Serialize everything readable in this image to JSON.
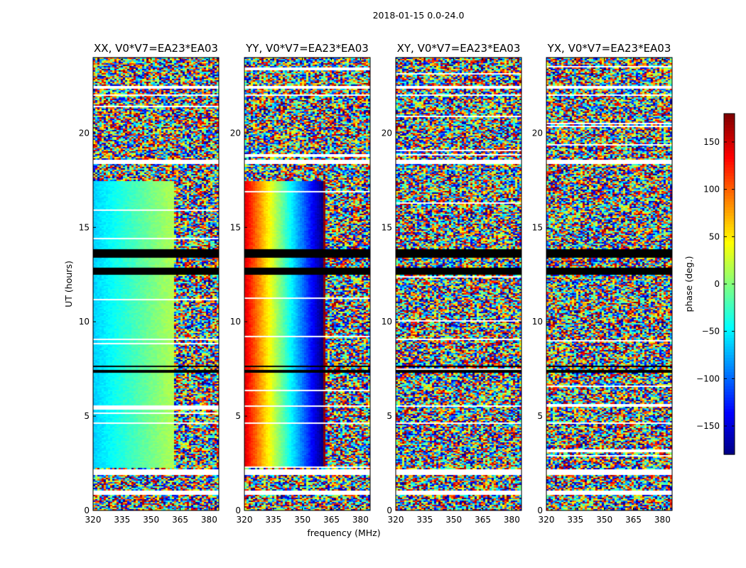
{
  "figure": {
    "suptitle": "2018-01-15 0.0-24.0",
    "xlabel": "frequency (MHz)",
    "ylabel": "UT (hours)",
    "colorbar_label": "phase (deg.)"
  },
  "chart_data": {
    "type": "heatmap",
    "xlim": [
      320,
      385
    ],
    "ylim": [
      0,
      24
    ],
    "xticks": [
      320,
      335,
      350,
      365,
      380
    ],
    "yticks": [
      0,
      5,
      10,
      15,
      20
    ],
    "colormap": "jet",
    "colorbar": {
      "range": [
        -180,
        180
      ],
      "ticks": [
        150,
        100,
        50,
        0,
        -50,
        -100,
        -150
      ],
      "ticklabels": [
        "150",
        "100",
        "50",
        "0",
        "−50",
        "−100",
        "−150"
      ]
    },
    "panels": [
      {
        "title": "XX, V0*V7=EA23*EA03",
        "coherent_phase": "smooth gradient ~ -60 to +20 deg between 320-360 MHz; noisy above 360 MHz",
        "random_bands_UT": [
          [
            0,
            2.3
          ],
          [
            17.5,
            24
          ]
        ]
      },
      {
        "title": "YY, V0*V7=EA23*EA03",
        "coherent_phase": "phase wrap from ~+150 deg at 320 MHz to ~-160 deg near 358 MHz; noisy above 360 MHz",
        "random_bands_UT": [
          [
            0,
            2.3
          ],
          [
            17.5,
            24
          ]
        ]
      },
      {
        "title": "XY, V0*V7=EA23*EA03",
        "coherent_phase": "none (random noise)",
        "random_bands_UT": [
          [
            0,
            24
          ]
        ]
      },
      {
        "title": "YX, V0*V7=EA23*EA03",
        "coherent_phase": "none (random noise)",
        "random_bands_UT": [
          [
            0,
            24
          ]
        ]
      }
    ],
    "flagged_black_UT": [
      [
        12.5,
        12.9
      ],
      [
        13.4,
        13.9
      ],
      [
        7.3,
        7.5
      ],
      [
        7.6,
        7.7
      ],
      [
        2.5,
        2.55
      ]
    ],
    "blank_white_UT": [
      [
        0.9,
        1.1
      ],
      [
        1.9,
        2.2
      ],
      [
        5.5,
        5.6
      ],
      [
        4.6,
        4.7
      ],
      [
        18.4,
        18.6
      ],
      [
        22.4,
        22.5
      ],
      [
        22.0,
        22.1
      ]
    ],
    "grid": false
  }
}
